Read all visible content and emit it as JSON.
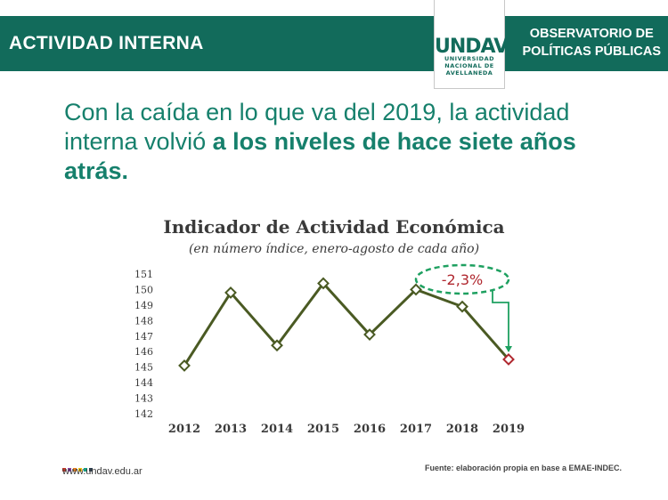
{
  "header": {
    "section_title": "ACTIVIDAD INTERNA",
    "org_line1": "OBSERVATORIO DE",
    "org_line2": "POLÍTICAS PÚBLICAS",
    "band_color": "#126b5b"
  },
  "logo": {
    "mark": "UNDAV",
    "line1": "UNIVERSIDAD",
    "line2": "NACIONAL DE",
    "line3": "AVELLANEDA"
  },
  "headline": {
    "part1": "Con la caída en lo que va del 2019, la actividad interna volvió ",
    "part2_bold": "a los niveles de hace siete años atrás."
  },
  "chart_data": {
    "type": "line",
    "title": "Indicador de Actividad Económica",
    "subtitle": "(en número índice, enero-agosto de cada año)",
    "categories": [
      "2012",
      "2013",
      "2014",
      "2015",
      "2016",
      "2017",
      "2018",
      "2019"
    ],
    "values": [
      145.1,
      149.8,
      146.4,
      150.4,
      147.1,
      150.0,
      148.9,
      145.5
    ],
    "ylim": [
      142,
      151
    ],
    "yticks": [
      142,
      143,
      144,
      145,
      146,
      147,
      148,
      149,
      150,
      151
    ],
    "grid": false,
    "line_color": "#4a5a23",
    "highlight_color": "#b0282f",
    "annotation": {
      "label": "-2,3%",
      "from": "2018",
      "to": "2019",
      "color": "#1ea060",
      "text_color": "#b0282f"
    }
  },
  "footer": {
    "website": "www.undav.edu.ar",
    "source": "Fuente: elaboración propia en base a EMAE-INDEC.",
    "dot_colors": [
      "#c0392b",
      "#8e44ad",
      "#e67e22",
      "#f1c40f",
      "#16a085",
      "#2c3e50"
    ]
  }
}
